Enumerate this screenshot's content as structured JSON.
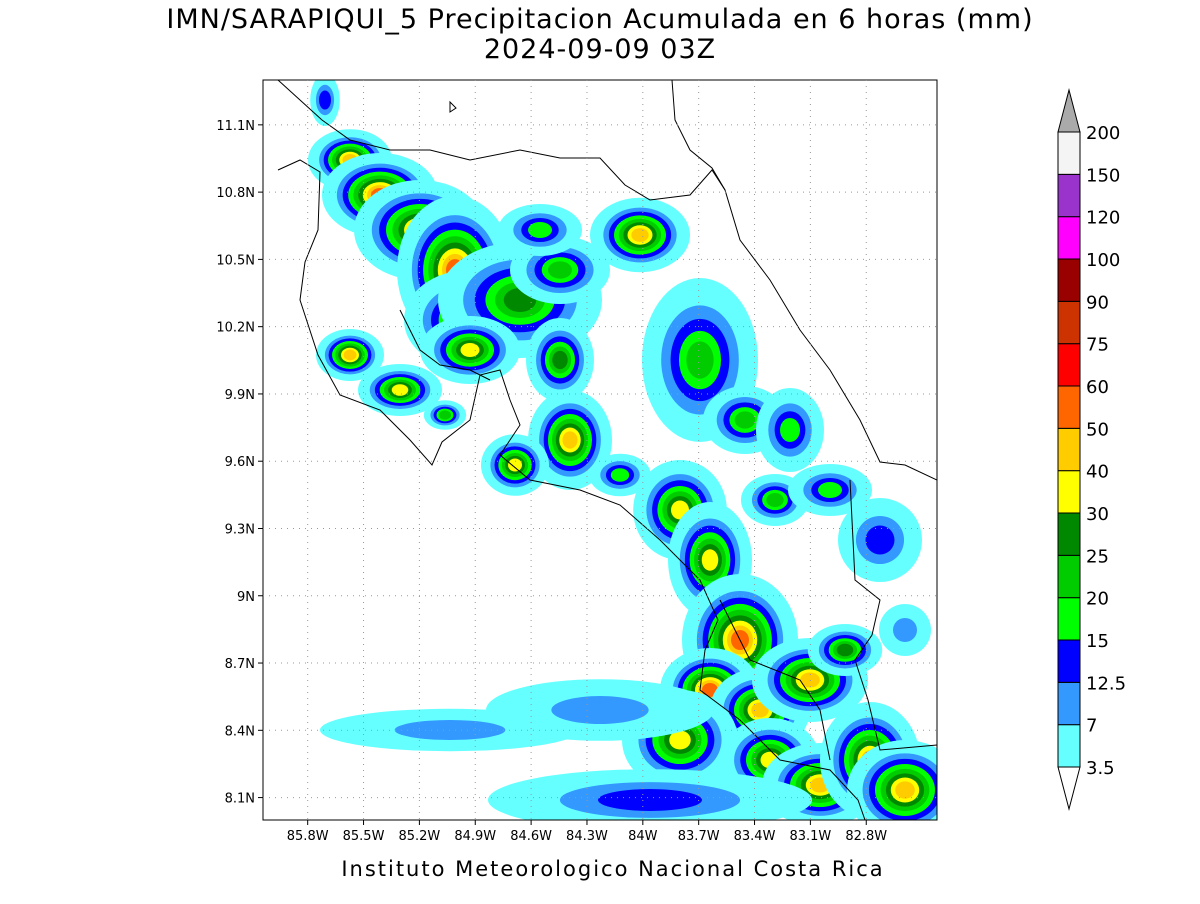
{
  "title": "IMN/SARAPIQUI_5 Precipitacion Acumulada en 6 horas (mm)",
  "subtitle": "2024-09-09 03Z",
  "footer": "Instituto Meteorologico Nacional Costa Rica",
  "map": {
    "xlim": [
      -86.04,
      -82.42
    ],
    "ylim": [
      8.0,
      11.3
    ],
    "grid": true,
    "xticks": [
      {
        "value": -85.8,
        "label": "85.8W"
      },
      {
        "value": -85.5,
        "label": "85.5W"
      },
      {
        "value": -85.2,
        "label": "85.2W"
      },
      {
        "value": -84.9,
        "label": "84.9W"
      },
      {
        "value": -84.6,
        "label": "84.6W"
      },
      {
        "value": -84.3,
        "label": "84.3W"
      },
      {
        "value": -84.0,
        "label": "84W"
      },
      {
        "value": -83.7,
        "label": "83.7W"
      },
      {
        "value": -83.4,
        "label": "83.4W"
      },
      {
        "value": -83.1,
        "label": "83.1W"
      },
      {
        "value": -82.8,
        "label": "82.8W"
      }
    ],
    "yticks": [
      {
        "value": 11.1,
        "label": "11.1N"
      },
      {
        "value": 10.8,
        "label": "10.8N"
      },
      {
        "value": 10.5,
        "label": "10.5N"
      },
      {
        "value": 10.2,
        "label": "10.2N"
      },
      {
        "value": 9.9,
        "label": "9.9N"
      },
      {
        "value": 9.6,
        "label": "9.6N"
      },
      {
        "value": 9.3,
        "label": "9.3N"
      },
      {
        "value": 9.0,
        "label": "9N"
      },
      {
        "value": 8.7,
        "label": "8.7N"
      },
      {
        "value": 8.4,
        "label": "8.4N"
      },
      {
        "value": 8.1,
        "label": "8.1N"
      }
    ]
  },
  "colorbar": {
    "levels": [
      3.5,
      7,
      12.5,
      15,
      20,
      25,
      30,
      40,
      50,
      60,
      75,
      90,
      100,
      120,
      150,
      200
    ],
    "colors": [
      "#ffffff",
      "#66ffff",
      "#3399ff",
      "#0000ff",
      "#00ff00",
      "#00cc00",
      "#008800",
      "#ffff00",
      "#ffcc00",
      "#ff6600",
      "#ff0000",
      "#cc3300",
      "#990000",
      "#ff00ff",
      "#9933cc",
      "#f4f4f4",
      "#aaaaaa"
    ]
  }
}
